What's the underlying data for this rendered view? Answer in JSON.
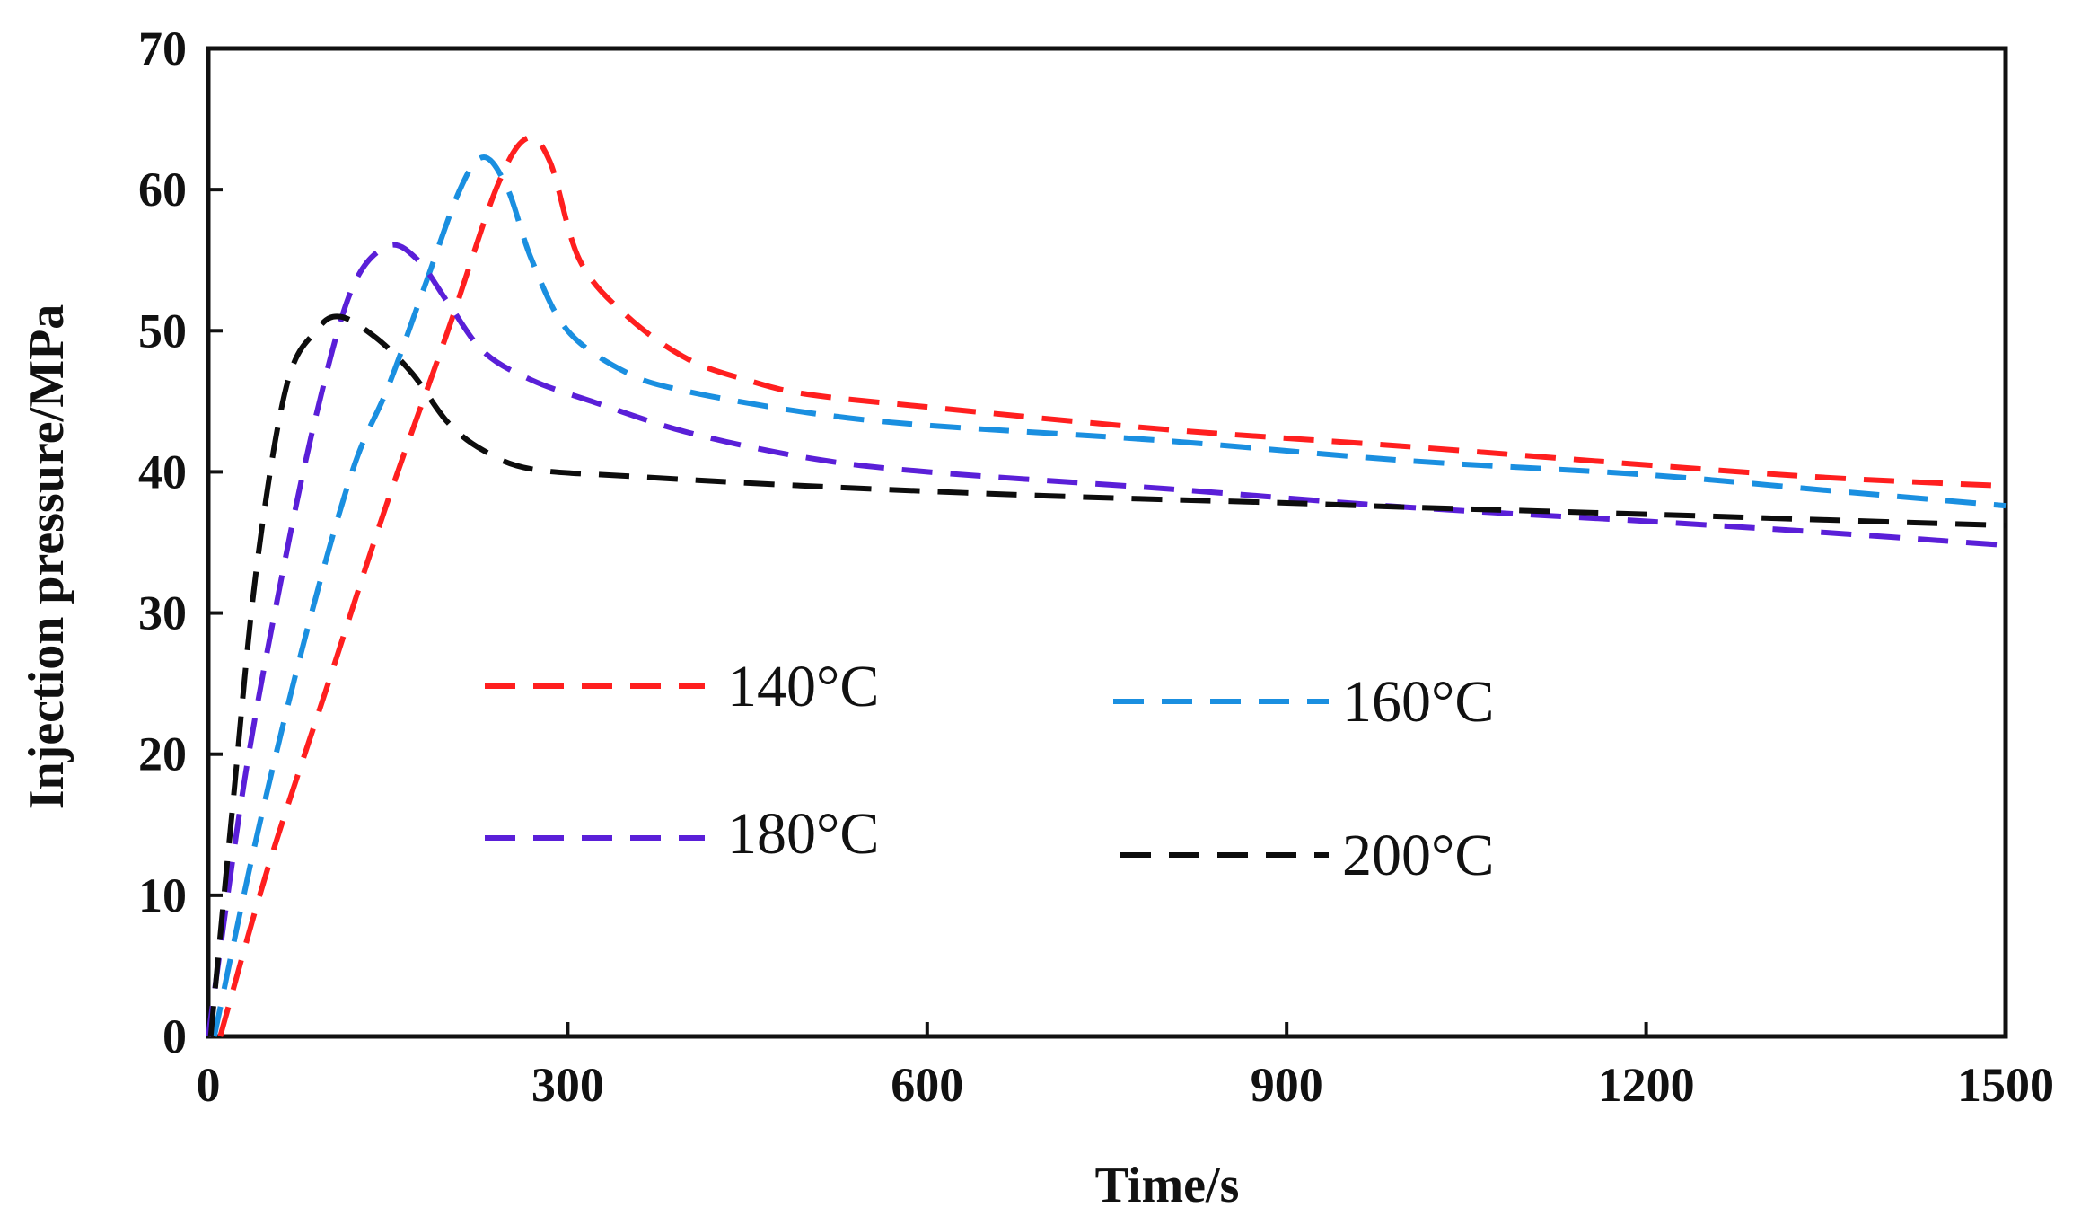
{
  "chart_data": {
    "type": "line",
    "title": "",
    "xlabel": "Time/s",
    "ylabel": "Injection pressure/MPa",
    "xlim": [
      0,
      1500
    ],
    "ylim": [
      0,
      70
    ],
    "xticks": [
      0,
      300,
      600,
      900,
      1200,
      1500
    ],
    "yticks": [
      0,
      10,
      20,
      30,
      40,
      50,
      60,
      70
    ],
    "xtick_labels": [
      "0",
      "300",
      "600",
      "900",
      "1200",
      "1500"
    ],
    "ytick_labels": [
      "0",
      "10",
      "20",
      "30",
      "40",
      "50",
      "60",
      "70"
    ],
    "grid": false,
    "legend_placement": "center",
    "series": [
      {
        "name": "140°C",
        "color": "#ff1f1f",
        "points": [
          [
            10,
            0
          ],
          [
            50,
            12
          ],
          [
            100,
            25
          ],
          [
            150,
            38
          ],
          [
            200,
            50
          ],
          [
            240,
            60
          ],
          [
            265,
            63.6
          ],
          [
            285,
            62
          ],
          [
            310,
            55
          ],
          [
            350,
            51
          ],
          [
            400,
            48
          ],
          [
            450,
            46.5
          ],
          [
            500,
            45.5
          ],
          [
            600,
            44.6
          ],
          [
            800,
            43
          ],
          [
            1000,
            41.8
          ],
          [
            1200,
            40.5
          ],
          [
            1350,
            39.6
          ],
          [
            1500,
            39
          ]
        ]
      },
      {
        "name": "160°C",
        "color": "#1a8fe0",
        "points": [
          [
            5,
            0
          ],
          [
            40,
            14
          ],
          [
            80,
            28
          ],
          [
            120,
            40
          ],
          [
            150,
            46
          ],
          [
            180,
            53
          ],
          [
            210,
            60
          ],
          [
            230,
            62.3
          ],
          [
            250,
            60
          ],
          [
            270,
            55
          ],
          [
            300,
            50
          ],
          [
            350,
            47
          ],
          [
            400,
            45.7
          ],
          [
            500,
            44.2
          ],
          [
            600,
            43.3
          ],
          [
            800,
            42.2
          ],
          [
            1000,
            40.8
          ],
          [
            1200,
            39.8
          ],
          [
            1350,
            38.7
          ],
          [
            1500,
            37.6
          ]
        ]
      },
      {
        "name": "180°C",
        "color": "#5a1fd8",
        "points": [
          [
            0,
            0
          ],
          [
            30,
            18
          ],
          [
            60,
            32
          ],
          [
            90,
            44
          ],
          [
            120,
            53
          ],
          [
            150,
            56
          ],
          [
            175,
            55
          ],
          [
            200,
            52
          ],
          [
            230,
            48.5
          ],
          [
            270,
            46.5
          ],
          [
            320,
            45
          ],
          [
            400,
            42.8
          ],
          [
            500,
            41
          ],
          [
            600,
            40
          ],
          [
            800,
            38.8
          ],
          [
            1000,
            37.5
          ],
          [
            1200,
            36.5
          ],
          [
            1350,
            35.7
          ],
          [
            1500,
            34.8
          ]
        ]
      },
      {
        "name": "200°C",
        "color": "#0d0d0d",
        "points": [
          [
            2,
            0
          ],
          [
            20,
            16
          ],
          [
            40,
            33
          ],
          [
            65,
            46
          ],
          [
            90,
            50
          ],
          [
            110,
            51
          ],
          [
            140,
            49.5
          ],
          [
            170,
            47
          ],
          [
            200,
            43.5
          ],
          [
            230,
            41.5
          ],
          [
            270,
            40.2
          ],
          [
            350,
            39.7
          ],
          [
            500,
            39
          ],
          [
            700,
            38.3
          ],
          [
            900,
            37.8
          ],
          [
            1000,
            37.5
          ],
          [
            1200,
            37
          ],
          [
            1350,
            36.6
          ],
          [
            1500,
            36.2
          ]
        ]
      }
    ]
  }
}
